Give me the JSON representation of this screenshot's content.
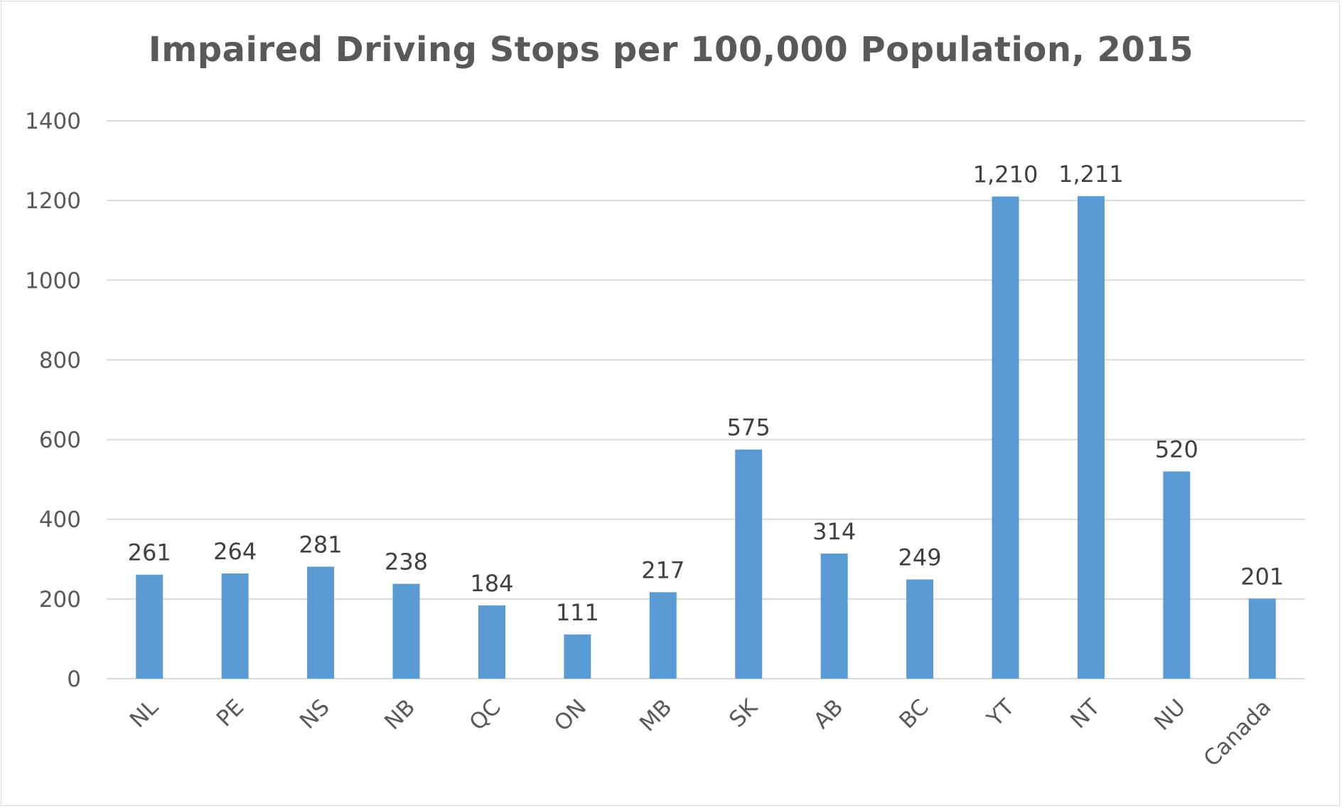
{
  "chart_data": {
    "type": "bar",
    "title": "Impaired Driving Stops per 100,000 Population, 2015",
    "xlabel": "",
    "ylabel": "",
    "categories": [
      "NL",
      "PE",
      "NS",
      "NB",
      "QC",
      "ON",
      "MB",
      "SK",
      "AB",
      "BC",
      "YT",
      "NT",
      "NU",
      "Canada"
    ],
    "values": [
      261,
      264,
      281,
      238,
      184,
      111,
      217,
      575,
      314,
      249,
      1210,
      1211,
      520,
      201
    ],
    "data_labels": [
      "261",
      "264",
      "281",
      "238",
      "184",
      "111",
      "217",
      "575",
      "314",
      "249",
      "1,210",
      "1,211",
      "520",
      "201"
    ],
    "ylim": [
      0,
      1400
    ],
    "yticks": [
      "0",
      "200",
      "400",
      "600",
      "800",
      "1000",
      "1200",
      "1400"
    ],
    "grid": true,
    "legend": "none",
    "colors": {
      "bar": "#5b9bd5",
      "grid": "#d9d9d9",
      "text": "#595959"
    }
  }
}
